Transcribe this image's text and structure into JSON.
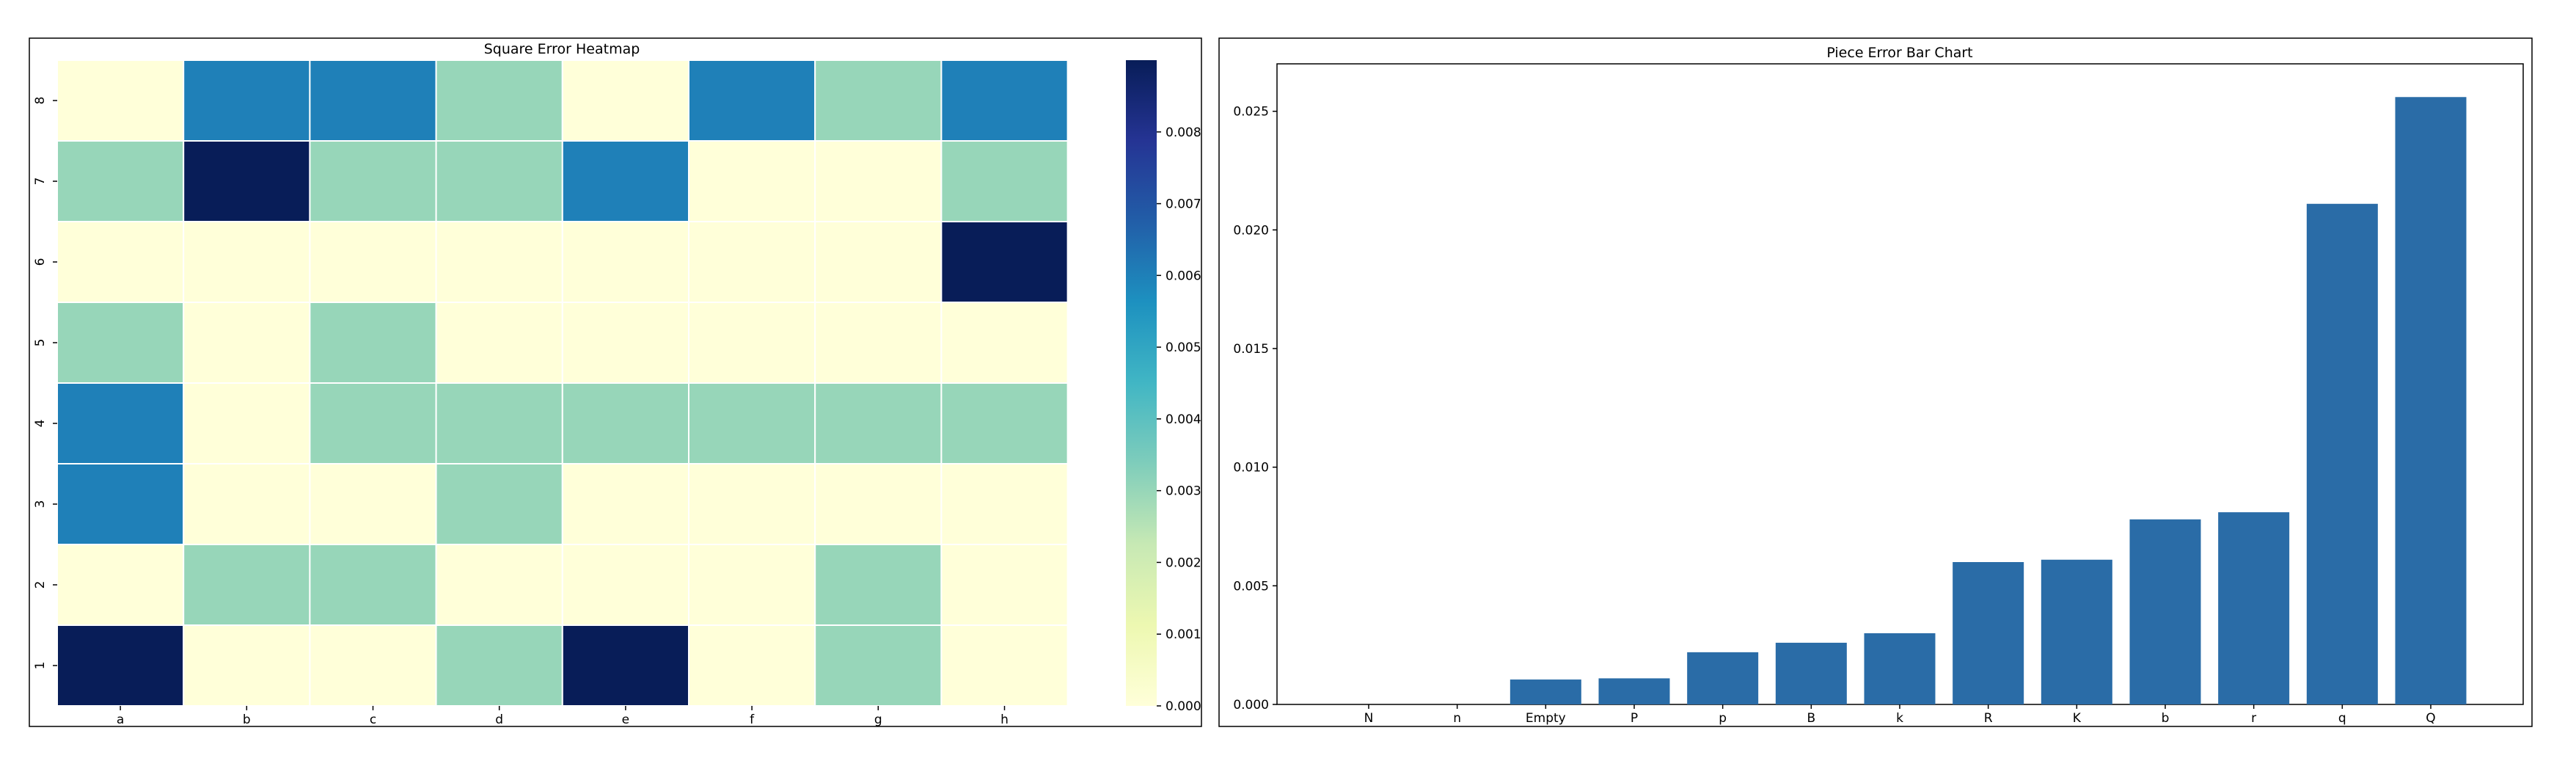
{
  "chart_data": [
    {
      "type": "heatmap",
      "title": "Square Error Heatmap",
      "colormap": "YlGnBu",
      "x_labels": [
        "a",
        "b",
        "c",
        "d",
        "e",
        "f",
        "g",
        "h"
      ],
      "y_labels": [
        "8",
        "7",
        "6",
        "5",
        "4",
        "3",
        "2",
        "1"
      ],
      "values": [
        [
          0.0,
          0.006,
          0.006,
          0.003,
          0.0,
          0.006,
          0.003,
          0.006
        ],
        [
          0.003,
          0.009,
          0.003,
          0.003,
          0.006,
          0.0,
          0.0,
          0.003
        ],
        [
          0.0,
          0.0,
          0.0,
          0.0,
          0.0,
          0.0,
          0.0,
          0.009
        ],
        [
          0.003,
          0.0,
          0.003,
          0.0,
          0.0,
          0.0,
          0.0,
          0.0
        ],
        [
          0.006,
          0.0,
          0.003,
          0.003,
          0.003,
          0.003,
          0.003,
          0.003
        ],
        [
          0.006,
          0.0,
          0.0,
          0.003,
          0.0,
          0.0,
          0.0,
          0.0
        ],
        [
          0.0,
          0.003,
          0.003,
          0.0,
          0.0,
          0.0,
          0.003,
          0.0
        ],
        [
          0.009,
          0.0,
          0.0,
          0.003,
          0.009,
          0.0,
          0.003,
          0.0
        ]
      ],
      "colorbar": {
        "vmin": 0.0,
        "vmax": 0.009,
        "ticks": [
          "0.000",
          "0.001",
          "0.002",
          "0.003",
          "0.004",
          "0.005",
          "0.006",
          "0.007",
          "0.008"
        ]
      }
    },
    {
      "type": "bar",
      "title": "Piece Error Bar Chart",
      "categories": [
        "N",
        "n",
        "Empty",
        "P",
        "p",
        "B",
        "k",
        "R",
        "K",
        "b",
        "r",
        "q",
        "Q"
      ],
      "values": [
        0.0,
        0.0,
        0.00105,
        0.0011,
        0.0022,
        0.0026,
        0.003,
        0.006,
        0.0061,
        0.0078,
        0.0081,
        0.0211,
        0.0256
      ],
      "ylim": [
        0,
        0.027
      ],
      "yticks": [
        "0.000",
        "0.005",
        "0.010",
        "0.015",
        "0.020",
        "0.025"
      ],
      "bar_color": "#2a6ca7"
    }
  ]
}
